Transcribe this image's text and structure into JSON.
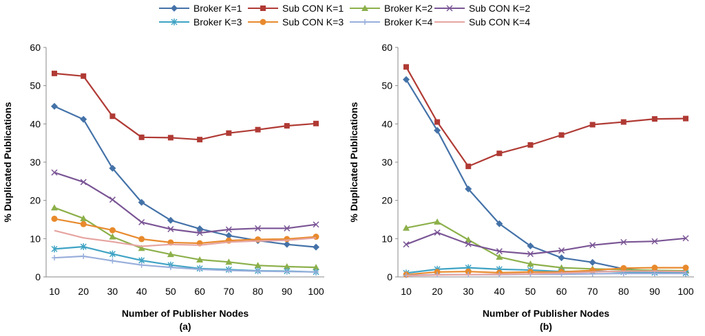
{
  "legend": [
    {
      "name": "Broker K=1",
      "color": "#4472A8",
      "marker": "diamond"
    },
    {
      "name": "Sub CON K=1",
      "color": "#B03A34",
      "marker": "square"
    },
    {
      "name": "Broker K=2",
      "color": "#8CB04A",
      "marker": "triangle"
    },
    {
      "name": "Sub CON K=2",
      "color": "#7A5595",
      "marker": "x"
    },
    {
      "name": "Broker K=3",
      "color": "#3FA3C4",
      "marker": "star"
    },
    {
      "name": "Sub CON K=3",
      "color": "#E88A2D",
      "marker": "circle"
    },
    {
      "name": "Broker K=4",
      "color": "#98AEDB",
      "marker": "plus"
    },
    {
      "name": "Sub CON K=4",
      "color": "#E6A4A1",
      "marker": "none"
    }
  ],
  "chart_data": [
    {
      "type": "line",
      "caption": "(a)",
      "xlabel": "Number of Publisher Nodes",
      "ylabel": "% Duplicated Publications",
      "x": [
        10,
        20,
        30,
        40,
        50,
        60,
        70,
        80,
        90,
        100
      ],
      "ylim": [
        0,
        60
      ],
      "yticks": [
        0,
        10,
        20,
        30,
        40,
        50,
        60
      ],
      "series": [
        {
          "name": "Broker K=1",
          "values": [
            44.6,
            41.2,
            28.4,
            19.5,
            14.8,
            12.6,
            10.8,
            9.5,
            8.5,
            7.8
          ]
        },
        {
          "name": "Sub CON K=1",
          "values": [
            53.2,
            52.5,
            42.0,
            36.5,
            36.4,
            35.9,
            37.6,
            38.5,
            39.5,
            40.1
          ]
        },
        {
          "name": "Broker K=2",
          "values": [
            18.1,
            15.3,
            10.5,
            7.5,
            5.9,
            4.5,
            3.9,
            3.0,
            2.7,
            2.5
          ]
        },
        {
          "name": "Sub CON K=2",
          "values": [
            27.3,
            24.8,
            20.2,
            14.3,
            12.5,
            11.5,
            12.4,
            12.7,
            12.7,
            13.7
          ]
        },
        {
          "name": "Broker K=3",
          "values": [
            7.3,
            7.9,
            6.0,
            4.3,
            3.1,
            2.2,
            1.9,
            1.6,
            1.5,
            1.3
          ]
        },
        {
          "name": "Sub CON K=3",
          "values": [
            15.2,
            13.8,
            12.2,
            9.9,
            9.0,
            8.8,
            9.5,
            9.8,
            9.9,
            10.5
          ]
        },
        {
          "name": "Broker K=4",
          "values": [
            5.0,
            5.4,
            4.2,
            3.1,
            2.5,
            2.0,
            1.7,
            1.5,
            1.4,
            1.3
          ]
        },
        {
          "name": "Sub CON K=4",
          "values": [
            12.1,
            10.2,
            9.2,
            8.0,
            8.5,
            8.3,
            9.1,
            9.4,
            9.6,
            10.2
          ]
        }
      ]
    },
    {
      "type": "line",
      "caption": "(b)",
      "xlabel": "Number of Publisher Nodes",
      "ylabel": "% Duplicated Publications",
      "x": [
        10,
        20,
        30,
        40,
        50,
        60,
        70,
        80,
        90,
        100
      ],
      "ylim": [
        0,
        60
      ],
      "yticks": [
        0,
        10,
        20,
        30,
        40,
        50,
        60
      ],
      "series": [
        {
          "name": "Broker K=1",
          "values": [
            51.6,
            38.3,
            23.0,
            13.9,
            8.1,
            5.0,
            3.8,
            2.1,
            1.5,
            1.2
          ]
        },
        {
          "name": "Sub CON K=1",
          "values": [
            54.9,
            40.5,
            28.9,
            32.3,
            34.5,
            37.1,
            39.8,
            40.5,
            41.3,
            41.4
          ]
        },
        {
          "name": "Broker K=2",
          "values": [
            12.8,
            14.4,
            9.7,
            5.2,
            3.4,
            2.4,
            2.1,
            1.9,
            1.7,
            1.6
          ]
        },
        {
          "name": "Sub CON K=2",
          "values": [
            8.5,
            11.6,
            8.6,
            6.7,
            6.0,
            6.9,
            8.3,
            9.1,
            9.3,
            10.1
          ]
        },
        {
          "name": "Broker K=3",
          "values": [
            1.0,
            2.0,
            2.4,
            2.0,
            1.8,
            1.4,
            1.5,
            1.3,
            1.1,
            1.0
          ]
        },
        {
          "name": "Sub CON K=3",
          "values": [
            0.6,
            1.3,
            1.4,
            1.1,
            1.3,
            1.3,
            1.7,
            2.3,
            2.4,
            2.4
          ]
        },
        {
          "name": "Broker K=4",
          "values": [
            0.4,
            0.6,
            0.6,
            0.6,
            0.7,
            0.7,
            0.8,
            0.9,
            0.9,
            0.9
          ]
        },
        {
          "name": "Sub CON K=4",
          "values": [
            0.3,
            0.5,
            0.6,
            0.7,
            0.8,
            1.0,
            1.3,
            1.5,
            1.5,
            1.4
          ]
        }
      ]
    }
  ]
}
